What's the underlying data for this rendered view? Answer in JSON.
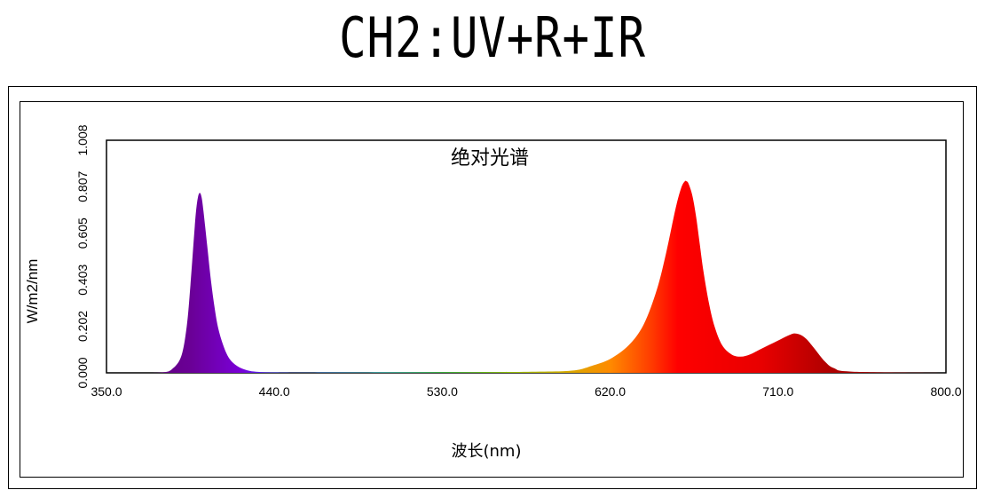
{
  "page": {
    "title": "CH2:UV+R+IR"
  },
  "chart_data": {
    "type": "area",
    "title": "绝对光谱",
    "xlabel": "波长(nm)",
    "ylabel": "W/m2/nm",
    "xlim": [
      350.0,
      800.0
    ],
    "ylim": [
      0.0,
      1.008
    ],
    "xticks": [
      "350.0",
      "440.0",
      "530.0",
      "620.0",
      "710.0",
      "800.0"
    ],
    "yticks": [
      "0.000",
      "0.202",
      "0.403",
      "0.605",
      "0.807",
      "1.008"
    ],
    "grid": false,
    "fill": "spectral-color-gradient",
    "series": [
      {
        "x": [
          350,
          370,
          380,
          385,
          390,
          393,
          395,
          397,
          398,
          399,
          400,
          401,
          402,
          404,
          406,
          408,
          410,
          413,
          416,
          420,
          425,
          430,
          440,
          460,
          500,
          540,
          580,
          600,
          610,
          620,
          630,
          638,
          645,
          650,
          655,
          658,
          660,
          661,
          662,
          664,
          666,
          668,
          670,
          673,
          676,
          680,
          685,
          690,
          695,
          700,
          705,
          710,
          715,
          718,
          720,
          722,
          724,
          726,
          728,
          730,
          735,
          740,
          750,
          800
        ],
        "y": [
          0.0,
          0.0,
          0.002,
          0.015,
          0.07,
          0.2,
          0.38,
          0.6,
          0.7,
          0.76,
          0.78,
          0.76,
          0.7,
          0.55,
          0.4,
          0.28,
          0.19,
          0.11,
          0.06,
          0.03,
          0.012,
          0.005,
          0.002,
          0.001,
          0.002,
          0.003,
          0.005,
          0.01,
          0.03,
          0.06,
          0.12,
          0.21,
          0.36,
          0.52,
          0.71,
          0.8,
          0.83,
          0.83,
          0.82,
          0.77,
          0.68,
          0.56,
          0.44,
          0.3,
          0.2,
          0.12,
          0.08,
          0.07,
          0.08,
          0.1,
          0.12,
          0.14,
          0.16,
          0.17,
          0.17,
          0.165,
          0.155,
          0.14,
          0.12,
          0.1,
          0.05,
          0.02,
          0.005,
          0.0
        ]
      }
    ]
  }
}
